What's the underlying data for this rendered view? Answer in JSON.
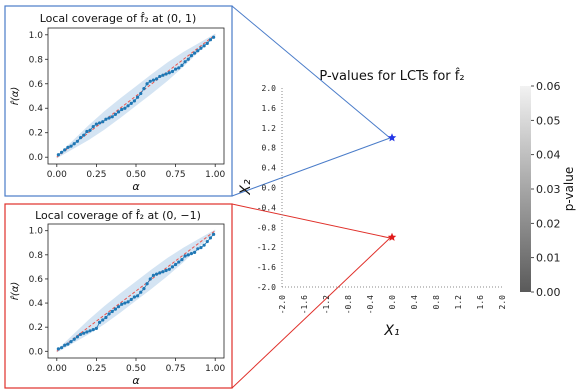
{
  "colors": {
    "blue_box": "#4a7cc9",
    "red_box": "#e0302a",
    "scatter": "#1f77b4",
    "band": "#c6dbef",
    "diagonal": "#e8554e",
    "star_blue": "#2437e6",
    "star_red": "#e01b1b"
  },
  "chart_data": [
    {
      "id": "inset-top",
      "type": "scatter",
      "title": "Local coverage of f̂₂ at (0, 1)",
      "xlabel": "α",
      "ylabel": "r̂(α)",
      "xlim": [
        0,
        1
      ],
      "ylim": [
        0,
        1
      ],
      "x_ticks": [
        "0.00",
        "0.25",
        "0.50",
        "0.75",
        "1.00"
      ],
      "y_ticks": [
        "0.0",
        "0.2",
        "0.4",
        "0.6",
        "0.8",
        "1.0"
      ],
      "diagonal": true,
      "band_halfwidth": [
        0.01,
        0.035,
        0.06,
        0.075,
        0.08,
        0.08,
        0.08,
        0.075,
        0.06,
        0.035,
        0.01
      ],
      "band_x": [
        0.0,
        0.1,
        0.2,
        0.3,
        0.4,
        0.5,
        0.6,
        0.7,
        0.8,
        0.9,
        1.0
      ],
      "x": [
        0.01,
        0.03,
        0.05,
        0.07,
        0.09,
        0.11,
        0.13,
        0.15,
        0.17,
        0.19,
        0.21,
        0.23,
        0.25,
        0.27,
        0.29,
        0.31,
        0.33,
        0.35,
        0.37,
        0.39,
        0.41,
        0.43,
        0.45,
        0.47,
        0.49,
        0.51,
        0.53,
        0.55,
        0.57,
        0.59,
        0.61,
        0.63,
        0.65,
        0.67,
        0.69,
        0.71,
        0.73,
        0.75,
        0.77,
        0.79,
        0.81,
        0.83,
        0.85,
        0.87,
        0.89,
        0.91,
        0.93,
        0.95,
        0.97,
        0.99
      ],
      "y": [
        0.02,
        0.04,
        0.06,
        0.08,
        0.09,
        0.11,
        0.13,
        0.16,
        0.18,
        0.21,
        0.22,
        0.25,
        0.27,
        0.28,
        0.29,
        0.31,
        0.32,
        0.33,
        0.35,
        0.37,
        0.39,
        0.4,
        0.42,
        0.44,
        0.46,
        0.49,
        0.52,
        0.56,
        0.6,
        0.62,
        0.63,
        0.64,
        0.66,
        0.67,
        0.68,
        0.69,
        0.7,
        0.72,
        0.73,
        0.75,
        0.78,
        0.8,
        0.83,
        0.85,
        0.87,
        0.89,
        0.91,
        0.93,
        0.96,
        0.98
      ]
    },
    {
      "id": "inset-bottom",
      "type": "scatter",
      "title": "Local coverage of f̂₂ at (0, −1)",
      "xlabel": "α",
      "ylabel": "r̂(α)",
      "xlim": [
        0,
        1
      ],
      "ylim": [
        0,
        1
      ],
      "x_ticks": [
        "0.00",
        "0.25",
        "0.50",
        "0.75",
        "1.00"
      ],
      "y_ticks": [
        "0.0",
        "0.2",
        "0.4",
        "0.6",
        "0.8",
        "1.0"
      ],
      "diagonal": true,
      "band_halfwidth": [
        0.01,
        0.035,
        0.06,
        0.075,
        0.08,
        0.08,
        0.08,
        0.075,
        0.06,
        0.035,
        0.01
      ],
      "band_x": [
        0.0,
        0.1,
        0.2,
        0.3,
        0.4,
        0.5,
        0.6,
        0.7,
        0.8,
        0.9,
        1.0
      ],
      "x": [
        0.01,
        0.03,
        0.05,
        0.07,
        0.09,
        0.11,
        0.13,
        0.15,
        0.17,
        0.19,
        0.21,
        0.23,
        0.25,
        0.27,
        0.29,
        0.31,
        0.33,
        0.35,
        0.37,
        0.39,
        0.41,
        0.43,
        0.45,
        0.47,
        0.49,
        0.51,
        0.53,
        0.55,
        0.57,
        0.59,
        0.61,
        0.63,
        0.65,
        0.67,
        0.69,
        0.71,
        0.73,
        0.75,
        0.77,
        0.79,
        0.81,
        0.83,
        0.85,
        0.87,
        0.89,
        0.91,
        0.93,
        0.95,
        0.97,
        0.99
      ],
      "y": [
        0.02,
        0.03,
        0.05,
        0.06,
        0.08,
        0.1,
        0.12,
        0.14,
        0.15,
        0.16,
        0.17,
        0.18,
        0.19,
        0.24,
        0.26,
        0.28,
        0.31,
        0.33,
        0.35,
        0.37,
        0.39,
        0.4,
        0.41,
        0.43,
        0.45,
        0.46,
        0.49,
        0.52,
        0.56,
        0.6,
        0.63,
        0.64,
        0.65,
        0.66,
        0.67,
        0.68,
        0.7,
        0.72,
        0.74,
        0.76,
        0.79,
        0.8,
        0.81,
        0.82,
        0.85,
        0.86,
        0.88,
        0.91,
        0.94,
        0.97
      ]
    },
    {
      "id": "main-pvalues",
      "type": "scatter",
      "title": "P-values for LCTs for f̂₂",
      "xlabel": "X₁",
      "ylabel": "X₂",
      "xlim": [
        -2.0,
        2.0
      ],
      "ylim": [
        -2.0,
        2.0
      ],
      "x_ticks": [
        "-2.0",
        "-1.6",
        "-1.2",
        "-0.8",
        "-0.4",
        "0.0",
        "0.4",
        "0.8",
        "1.2",
        "1.6",
        "2.0"
      ],
      "y_ticks": [
        "-2.0",
        "-1.6",
        "-1.2",
        "-0.8",
        "-0.4",
        "0.0",
        "0.4",
        "0.8",
        "1.2",
        "1.6",
        "2.0"
      ],
      "points": [
        {
          "x": 0.0,
          "y": 1.0,
          "marker": "star",
          "color": "#2437e6"
        },
        {
          "x": 0.0,
          "y": -1.0,
          "marker": "star",
          "color": "#e01b1b"
        }
      ]
    },
    {
      "id": "colorbar",
      "type": "heatmap",
      "label": "p-value",
      "range": [
        0.0,
        0.06
      ],
      "ticks": [
        "0.00",
        "0.01",
        "0.02",
        "0.03",
        "0.04",
        "0.05",
        "0.06"
      ],
      "cmap": [
        "#5a5a5a",
        "#f2f2f2"
      ]
    }
  ]
}
